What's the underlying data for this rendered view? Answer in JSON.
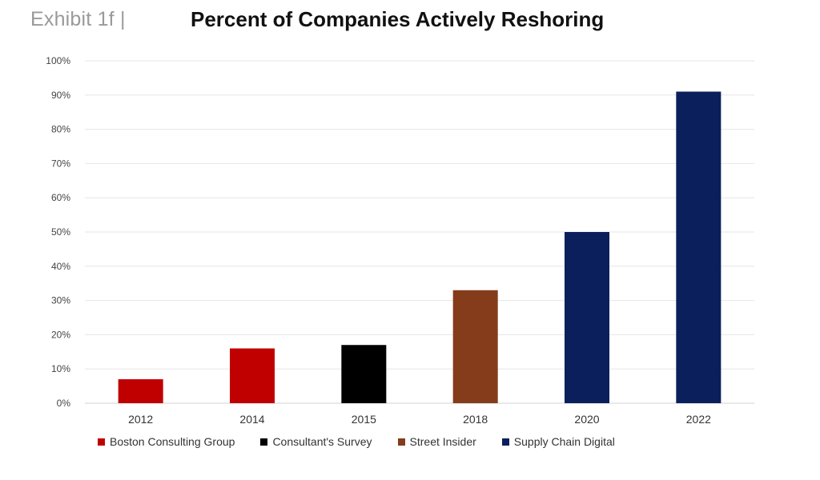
{
  "header": {
    "exhibit": "Exhibit 1f  |",
    "title": "Percent of Companies Actively Reshoring"
  },
  "chart_data": {
    "type": "bar",
    "title": "Percent of Companies Actively Reshoring",
    "xlabel": "",
    "ylabel": "",
    "ylim": [
      0,
      100
    ],
    "yticks": [
      "0%",
      "10%",
      "20%",
      "30%",
      "40%",
      "50%",
      "60%",
      "70%",
      "80%",
      "90%",
      "100%"
    ],
    "categories": [
      "2012",
      "2014",
      "2015",
      "2018",
      "2020",
      "2022"
    ],
    "values": [
      7,
      16,
      17,
      33,
      50,
      91
    ],
    "bar_sources": [
      "Boston Consulting Group",
      "Boston Consulting Group",
      "Consultant's Survey",
      "Street Insider",
      "Supply Chain Digital",
      "Supply Chain Digital"
    ],
    "grid": true,
    "legend_position": "bottom",
    "legend": [
      {
        "name": "Boston Consulting Group",
        "color": "#c00000"
      },
      {
        "name": "Consultant's Survey",
        "color": "#000000"
      },
      {
        "name": "Street Insider",
        "color": "#843c1a"
      },
      {
        "name": "Supply Chain Digital",
        "color": "#0b1f5c"
      }
    ]
  }
}
